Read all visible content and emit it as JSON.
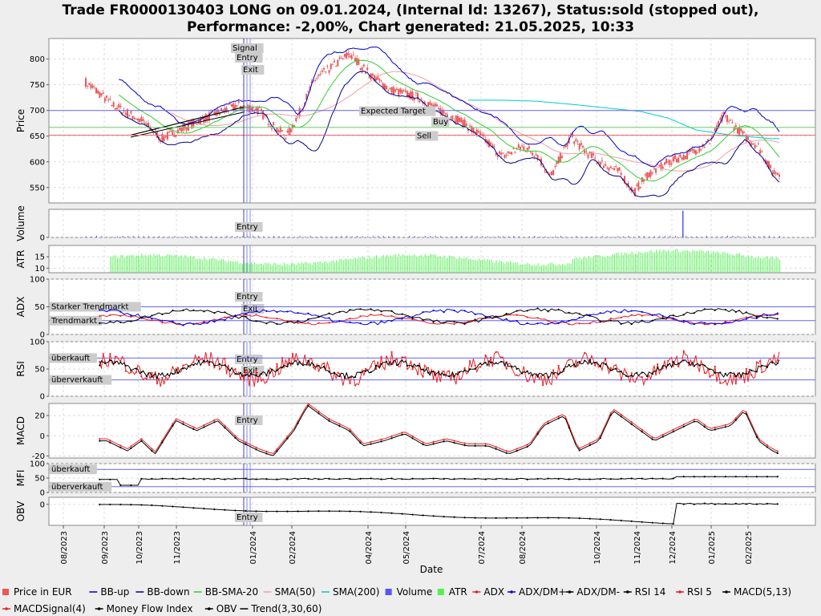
{
  "chart_data": {
    "type": "line",
    "title_line1": "Trade FR0000130403 LONG on 09.01.2024, (Internal Id: 13267), Status:sold (stopped out),",
    "title_line2": "Performance: -2,00%, Chart generated: 21.05.2025, 10:33",
    "xlabel": "Date",
    "x_ticks": [
      "08/2023",
      "09/2023",
      "10/2023",
      "11/2023",
      "01/2024",
      "02/2024",
      "04/2024",
      "05/2024",
      "07/2024",
      "08/2024",
      "10/2024",
      "11/2024",
      "12/2024",
      "01/2025",
      "02/2025"
    ],
    "markers": {
      "signal": "Signal",
      "entry": "Entry",
      "exit": "Exit"
    },
    "annotations": {
      "expected_target": "Expected Target",
      "buy": "Buy",
      "sell": "Sell"
    },
    "panels": {
      "price": {
        "ylabel": "Price",
        "ylim": [
          520,
          840
        ],
        "yticks": [
          550,
          600,
          650,
          700,
          750,
          800
        ],
        "hlines": {
          "expected_target": 700,
          "buy": 667,
          "sell": 652
        },
        "close_keypoints": [
          [
            0,
            755
          ],
          [
            4,
            710
          ],
          [
            8,
            680
          ],
          [
            11,
            645
          ],
          [
            14,
            665
          ],
          [
            18,
            690
          ],
          [
            22,
            710
          ],
          [
            25,
            700
          ],
          [
            27,
            670
          ],
          [
            29,
            650
          ],
          [
            31,
            700
          ],
          [
            33,
            760
          ],
          [
            36,
            790
          ],
          [
            38,
            810
          ],
          [
            41,
            770
          ],
          [
            44,
            740
          ],
          [
            48,
            725
          ],
          [
            51,
            700
          ],
          [
            54,
            680
          ],
          [
            57,
            650
          ],
          [
            60,
            610
          ],
          [
            63,
            630
          ],
          [
            65,
            615
          ],
          [
            67,
            570
          ],
          [
            70,
            650
          ],
          [
            72,
            620
          ],
          [
            74,
            600
          ],
          [
            77,
            580
          ],
          [
            79,
            540
          ],
          [
            81,
            575
          ],
          [
            84,
            600
          ],
          [
            87,
            615
          ],
          [
            90,
            640
          ],
          [
            92,
            690
          ],
          [
            95,
            650
          ],
          [
            97,
            630
          ],
          [
            99,
            580
          ]
        ],
        "sma200_keypoints": [
          [
            55,
            720
          ],
          [
            60,
            720
          ],
          [
            65,
            718
          ],
          [
            70,
            712
          ],
          [
            75,
            705
          ],
          [
            80,
            698
          ],
          [
            84,
            685
          ],
          [
            88,
            662
          ],
          [
            93,
            652
          ],
          [
            99,
            645
          ]
        ]
      },
      "volume": {
        "ylabel": "Volume",
        "ylim": [
          0,
          100
        ],
        "yticks": [
          0
        ]
      },
      "atr": {
        "ylabel": "ATR",
        "ylim": [
          8,
          20
        ],
        "yticks": [
          10,
          15
        ]
      },
      "adx": {
        "ylabel": "ADX",
        "ylim": [
          0,
          100
        ],
        "yticks": [
          0,
          50,
          100
        ],
        "levels": {
          "strong": "Starker Trendmarkt",
          "trend": "Trendmarkt"
        }
      },
      "rsi": {
        "ylabel": "RSI",
        "ylim": [
          0,
          100
        ],
        "yticks": [
          0,
          50,
          100
        ],
        "levels": {
          "overbought": "überkauft",
          "oversold": "überverkauft"
        }
      },
      "macd": {
        "ylabel": "MACD",
        "ylim": [
          -22,
          32
        ],
        "yticks": [
          -20,
          0,
          20
        ],
        "keypoints": [
          [
            3,
            -5
          ],
          [
            6,
            -15
          ],
          [
            8,
            -5
          ],
          [
            10,
            -18
          ],
          [
            13,
            15
          ],
          [
            16,
            5
          ],
          [
            19,
            15
          ],
          [
            22,
            -5
          ],
          [
            25,
            -15
          ],
          [
            27,
            -20
          ],
          [
            30,
            5
          ],
          [
            32,
            30
          ],
          [
            35,
            15
          ],
          [
            38,
            5
          ],
          [
            40,
            -10
          ],
          [
            43,
            -5
          ],
          [
            46,
            2
          ],
          [
            49,
            -10
          ],
          [
            52,
            -5
          ],
          [
            55,
            -10
          ],
          [
            58,
            -10
          ],
          [
            61,
            -18
          ],
          [
            64,
            -10
          ],
          [
            66,
            10
          ],
          [
            69,
            20
          ],
          [
            71,
            -15
          ],
          [
            74,
            -5
          ],
          [
            76,
            25
          ],
          [
            79,
            10
          ],
          [
            82,
            -5
          ],
          [
            85,
            5
          ],
          [
            88,
            15
          ],
          [
            90,
            5
          ],
          [
            93,
            10
          ],
          [
            95,
            25
          ],
          [
            97,
            -5
          ],
          [
            99,
            -15
          ],
          [
            100,
            -18
          ]
        ]
      },
      "mfi": {
        "ylabel": "MFI",
        "ylim": [
          0,
          100
        ],
        "yticks": [
          0,
          50,
          100
        ],
        "levels": {
          "overbought": "überkauft",
          "oversold": "überverkauft"
        }
      },
      "obv": {
        "ylabel": "OBV",
        "ylim": [
          -30,
          10
        ],
        "yticks": [
          0
        ]
      }
    },
    "legend": [
      {
        "label": "Price in EUR",
        "color": "#ee5555",
        "kind": "box"
      },
      {
        "label": "BB-up",
        "color": "#0000cc",
        "kind": "line"
      },
      {
        "label": "BB-down",
        "color": "#000088",
        "kind": "line"
      },
      {
        "label": "BB-SMA-20",
        "color": "#33cc33",
        "kind": "line"
      },
      {
        "label": "SMA(50)",
        "color": "#f0a0a0",
        "kind": "line"
      },
      {
        "label": "SMA(200)",
        "color": "#00cccc",
        "kind": "line"
      },
      {
        "label": "Volume",
        "color": "#5555ff",
        "kind": "box"
      },
      {
        "label": "ATR",
        "color": "#55ee55",
        "kind": "box"
      },
      {
        "label": "ADX",
        "color": "#ee2222",
        "kind": "marker"
      },
      {
        "label": "ADX/DM+",
        "color": "#0000ee",
        "kind": "marker"
      },
      {
        "label": "ADX/DM-",
        "color": "#000000",
        "kind": "marker"
      },
      {
        "label": "RSI 14",
        "color": "#000000",
        "kind": "marker"
      },
      {
        "label": "RSI 5",
        "color": "#ee2222",
        "kind": "marker"
      },
      {
        "label": "MACD(5,13)",
        "color": "#000000",
        "kind": "marker"
      },
      {
        "label": "MACDSignal(4)",
        "color": "#ee2222",
        "kind": "marker"
      },
      {
        "label": "Money Flow Index",
        "color": "#000000",
        "kind": "marker"
      },
      {
        "label": "OBV",
        "color": "#000000",
        "kind": "marker"
      },
      {
        "label": "Trend(3,30,60)",
        "color": "#000000",
        "kind": "line"
      }
    ]
  }
}
